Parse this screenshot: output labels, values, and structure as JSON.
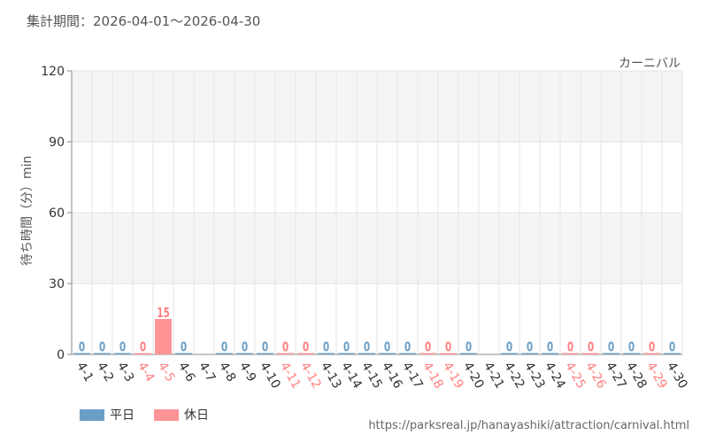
{
  "header": {
    "period": "集計期間：2026-04-01～2026-04-30",
    "attraction": "カーニバル"
  },
  "legend": {
    "weekday_label": "平日",
    "holiday_label": "休日"
  },
  "footer": {
    "url": "https://parksreal.jp/hanayashiki/attraction/carnival.html"
  },
  "colors": {
    "weekday": "#6a9ec5",
    "holiday": "#ff9496",
    "weekday_text": "#6a9ec5",
    "holiday_text": "#ff7f80"
  },
  "chart_data": {
    "type": "bar",
    "title": "カーニバル",
    "ylabel": "待ち時間（分）min",
    "xlabel": "",
    "ylim": [
      0,
      120
    ],
    "yticks": [
      0,
      30,
      60,
      90,
      120
    ],
    "grid": true,
    "legend_position": "bottom-left",
    "categories": [
      "4-1",
      "4-2",
      "4-3",
      "4-4",
      "4-5",
      "4-6",
      "4-7",
      "4-8",
      "4-9",
      "4-10",
      "4-11",
      "4-12",
      "4-13",
      "4-14",
      "4-15",
      "4-16",
      "4-17",
      "4-18",
      "4-19",
      "4-20",
      "4-21",
      "4-22",
      "4-23",
      "4-24",
      "4-25",
      "4-26",
      "4-27",
      "4-28",
      "4-29",
      "4-30"
    ],
    "values": [
      0,
      0,
      0,
      0,
      15,
      0,
      null,
      0,
      0,
      0,
      0,
      0,
      0,
      0,
      0,
      0,
      0,
      0,
      0,
      0,
      null,
      0,
      0,
      0,
      0,
      0,
      0,
      0,
      0,
      0
    ],
    "day_types": [
      "weekday",
      "weekday",
      "weekday",
      "holiday",
      "holiday",
      "weekday",
      "weekday",
      "weekday",
      "weekday",
      "weekday",
      "holiday",
      "holiday",
      "weekday",
      "weekday",
      "weekday",
      "weekday",
      "weekday",
      "holiday",
      "holiday",
      "weekday",
      "weekday",
      "weekday",
      "weekday",
      "weekday",
      "holiday",
      "holiday",
      "weekday",
      "weekday",
      "holiday",
      "weekday"
    ],
    "series": [
      {
        "name": "平日"
      },
      {
        "name": "休日"
      }
    ]
  }
}
